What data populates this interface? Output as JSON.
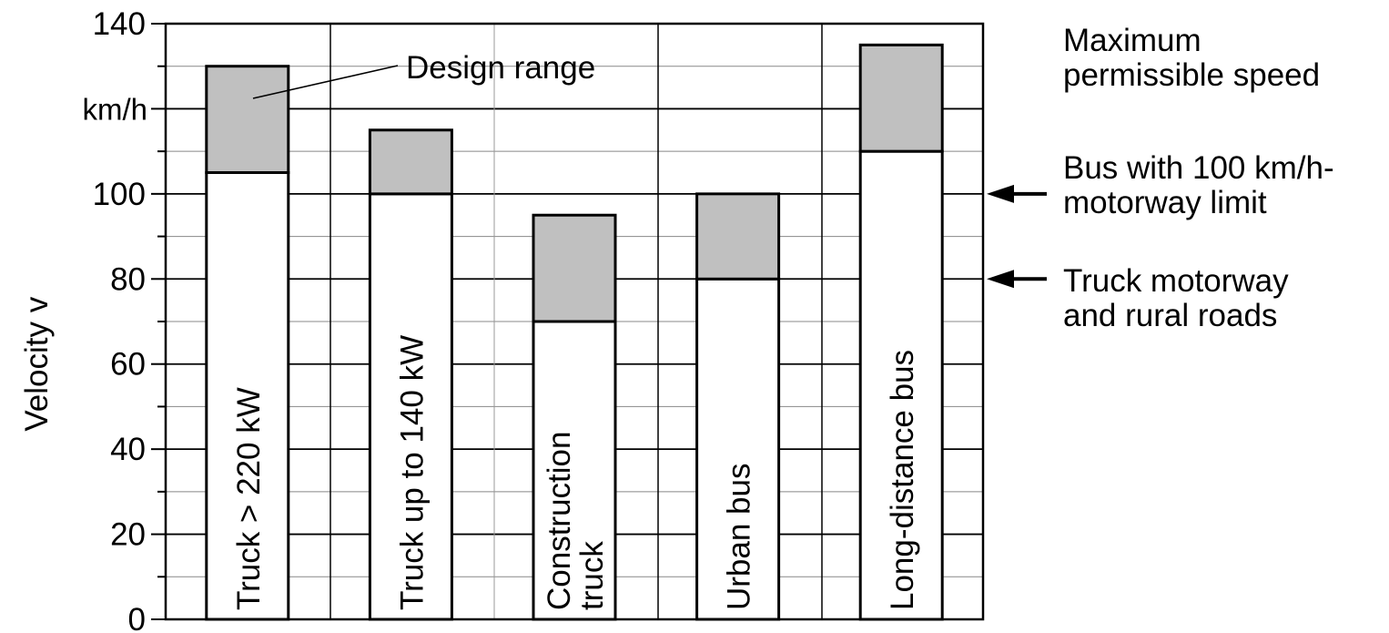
{
  "chart_data": {
    "type": "bar",
    "ylabel": "Velocity  v",
    "yunit": "km/h",
    "ylim": [
      0,
      140
    ],
    "yticks": [
      0,
      20,
      40,
      60,
      80,
      100,
      140
    ],
    "grid": true,
    "categories": [
      "Truck > 220 kW",
      "Truck up to 140 kW",
      [
        "Construction",
        "truck"
      ],
      "Urban bus",
      "Long-distance bus"
    ],
    "series": [
      {
        "name": "",
        "values": [
          105,
          100,
          70,
          80,
          110
        ]
      },
      {
        "name": "Design range",
        "values": [
          130,
          115,
          95,
          100,
          135
        ]
      }
    ],
    "colors": {
      "lower": "#ffffff",
      "range": "#c0c0c0",
      "stroke": "#000000"
    },
    "annotations": {
      "design_range": "Design range",
      "right": [
        {
          "text": [
            "Maximum",
            "permissible speed"
          ]
        },
        {
          "text": [
            "Bus with 100 km/h-",
            "motorway limit"
          ],
          "y": 100
        },
        {
          "text": [
            "Truck motorway",
            "and rural roads"
          ],
          "y": 80
        }
      ]
    }
  }
}
